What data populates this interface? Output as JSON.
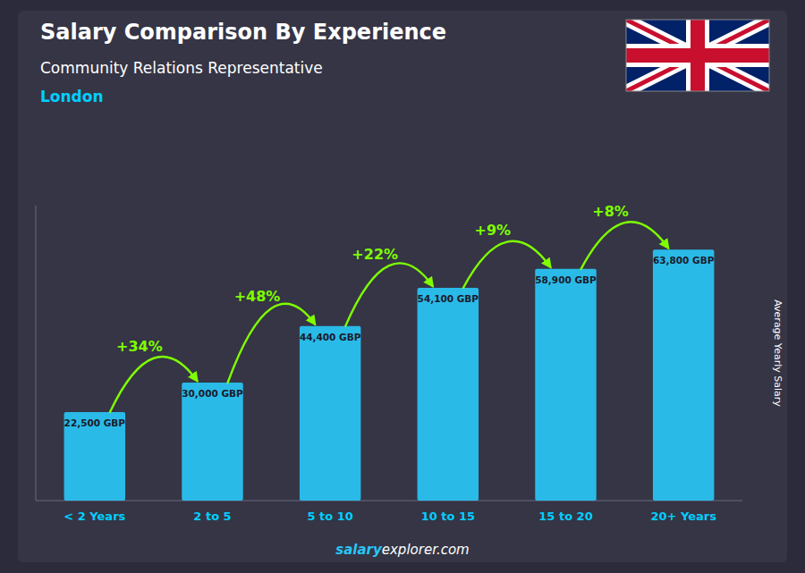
{
  "chart_data": {
    "type": "bar",
    "title": "Salary Comparison By Experience",
    "subtitle": "Community Relations Representative",
    "location": "London",
    "ylabel": "Average Yearly Salary",
    "categories": [
      "< 2 Years",
      "2 to 5",
      "5 to 10",
      "10 to 15",
      "15 to 20",
      "20+ Years"
    ],
    "values": [
      22500,
      30000,
      44400,
      54100,
      58900,
      63800
    ],
    "value_labels": [
      "22,500 GBP",
      "30,000 GBP",
      "44,400 GBP",
      "54,100 GBP",
      "58,900 GBP",
      "63,800 GBP"
    ],
    "data_labels": true,
    "annotations": [
      "+34%",
      "+48%",
      "+22%",
      "+9%",
      "+8%"
    ],
    "footer": [
      "salary",
      "explorer.com"
    ],
    "color": "#29C5F6",
    "annotation_color": "#7FFF00",
    "category_color": "#00CFFF",
    "footer_color": "#29C5F6",
    "ylim": [
      0,
      75000
    ],
    "tick_labels": "x",
    "grid": false
  }
}
